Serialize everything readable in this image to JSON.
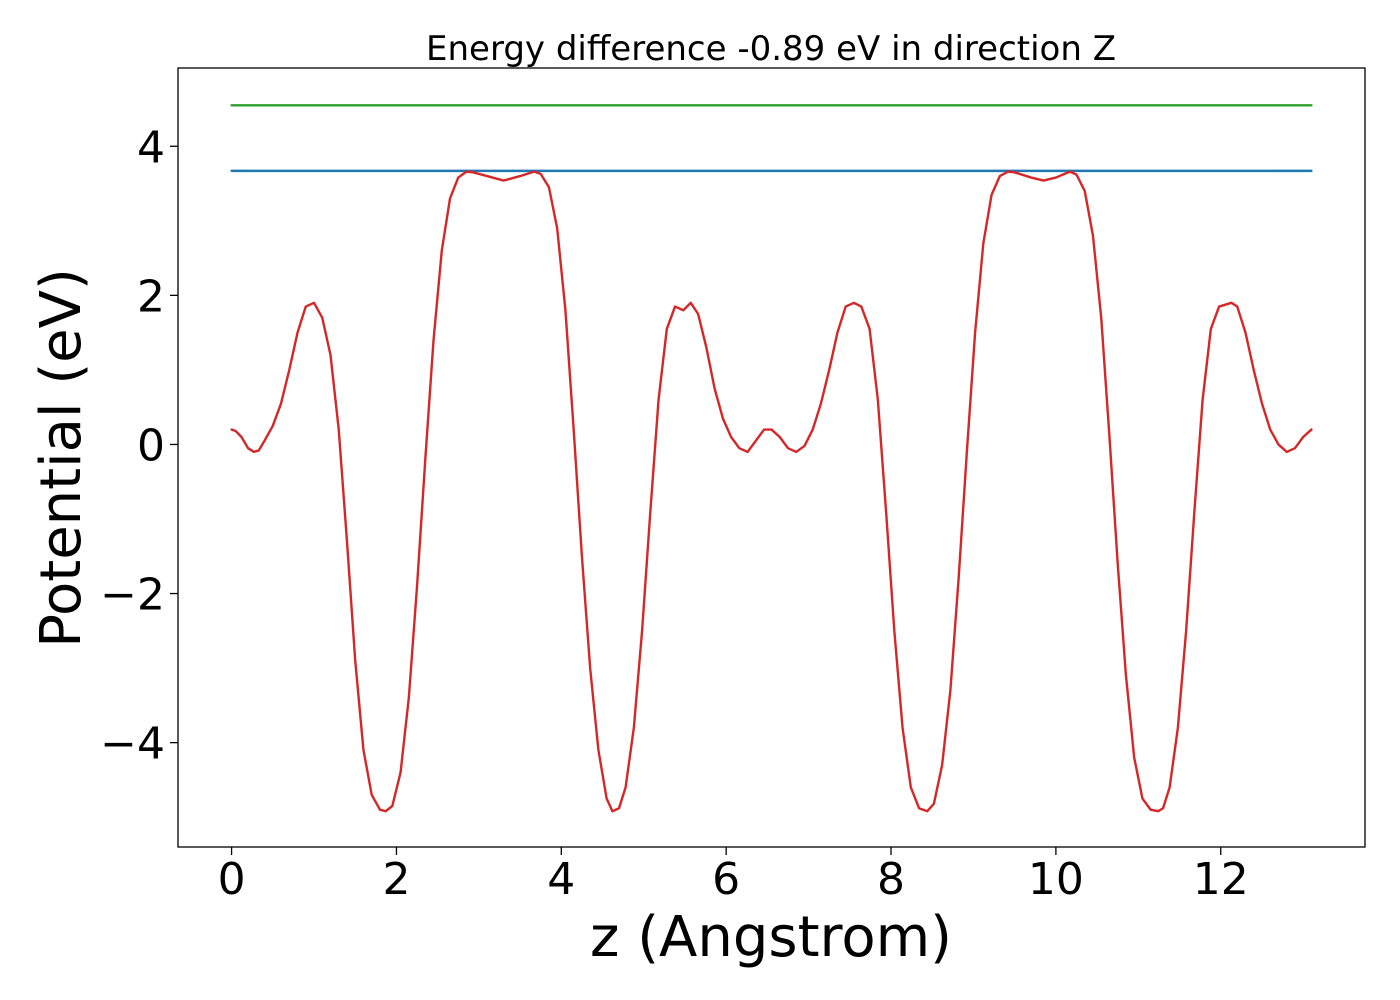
{
  "chart_data": {
    "type": "line",
    "title": "Energy difference -0.89 eV in direction Z",
    "xlabel": "z (Angstrom)",
    "ylabel": "Potential (eV)",
    "xlim": [
      -0.65,
      13.75
    ],
    "ylim": [
      -5.4,
      5.05
    ],
    "xticks": [
      0,
      2,
      4,
      6,
      8,
      10,
      12
    ],
    "yticks": [
      -4,
      -2,
      0,
      2,
      4
    ],
    "xtick_labels": [
      "0",
      "2",
      "4",
      "6",
      "8",
      "10",
      "12"
    ],
    "ytick_labels": [
      "−4",
      "−2",
      "0",
      "2",
      "4"
    ],
    "grid": false,
    "legend": "none",
    "series": [
      {
        "color": "#2ca02c",
        "x": [
          0,
          13.1
        ],
        "y": [
          4.55,
          4.55
        ]
      },
      {
        "color": "#1f77b4",
        "x": [
          0,
          13.1
        ],
        "y": [
          3.67,
          3.67
        ]
      },
      {
        "color": "#d62728",
        "x": [
          0.0,
          0.05,
          0.12,
          0.2,
          0.27,
          0.33,
          0.4,
          0.5,
          0.6,
          0.7,
          0.8,
          0.9,
          1.0,
          1.1,
          1.2,
          1.3,
          1.4,
          1.5,
          1.6,
          1.7,
          1.8,
          1.87,
          1.95,
          2.05,
          2.15,
          2.25,
          2.35,
          2.45,
          2.55,
          2.65,
          2.75,
          2.85,
          2.93,
          3.1,
          3.3,
          3.5,
          3.67,
          3.75,
          3.85,
          3.95,
          4.05,
          4.15,
          4.25,
          4.35,
          4.45,
          4.55,
          4.62,
          4.7,
          4.78,
          4.88,
          4.98,
          5.08,
          5.18,
          5.28,
          5.38,
          5.48,
          5.57,
          5.66,
          5.76,
          5.86,
          5.96,
          6.06,
          6.16,
          6.26,
          6.36,
          6.46,
          6.55,
          6.65,
          6.75,
          6.85,
          6.95,
          7.05,
          7.15,
          7.25,
          7.35,
          7.45,
          7.55,
          7.64,
          7.74,
          7.84,
          7.94,
          8.04,
          8.14,
          8.24,
          8.34,
          8.44,
          8.52,
          8.62,
          8.72,
          8.82,
          8.92,
          9.02,
          9.12,
          9.22,
          9.32,
          9.42,
          9.5,
          9.7,
          9.85,
          10.0,
          10.17,
          10.25,
          10.35,
          10.45,
          10.55,
          10.65,
          10.75,
          10.85,
          10.95,
          11.05,
          11.15,
          11.24,
          11.3,
          11.38,
          11.48,
          11.58,
          11.68,
          11.78,
          11.88,
          11.98,
          12.13,
          12.2,
          12.3,
          12.4,
          12.5,
          12.6,
          12.7,
          12.8,
          12.9,
          13.0,
          13.1
        ],
        "y": [
          0.2,
          0.18,
          0.1,
          -0.05,
          -0.1,
          -0.08,
          0.05,
          0.25,
          0.55,
          1.0,
          1.5,
          1.85,
          1.9,
          1.7,
          1.2,
          0.2,
          -1.3,
          -2.9,
          -4.1,
          -4.7,
          -4.9,
          -4.92,
          -4.85,
          -4.4,
          -3.4,
          -1.9,
          -0.2,
          1.4,
          2.6,
          3.3,
          3.58,
          3.66,
          3.65,
          3.6,
          3.54,
          3.6,
          3.66,
          3.63,
          3.45,
          2.9,
          1.8,
          0.2,
          -1.5,
          -3.0,
          -4.1,
          -4.75,
          -4.92,
          -4.88,
          -4.6,
          -3.8,
          -2.5,
          -0.9,
          0.6,
          1.55,
          1.85,
          1.8,
          1.9,
          1.75,
          1.3,
          0.75,
          0.35,
          0.1,
          -0.05,
          -0.1,
          0.05,
          0.2,
          0.2,
          0.1,
          -0.05,
          -0.1,
          -0.02,
          0.2,
          0.55,
          1.0,
          1.5,
          1.85,
          1.9,
          1.85,
          1.55,
          0.6,
          -0.9,
          -2.5,
          -3.8,
          -4.6,
          -4.88,
          -4.92,
          -4.82,
          -4.3,
          -3.3,
          -1.8,
          -0.1,
          1.5,
          2.7,
          3.35,
          3.6,
          3.66,
          3.65,
          3.58,
          3.54,
          3.58,
          3.66,
          3.62,
          3.4,
          2.8,
          1.7,
          0.1,
          -1.6,
          -3.1,
          -4.2,
          -4.75,
          -4.9,
          -4.92,
          -4.88,
          -4.6,
          -3.8,
          -2.5,
          -0.9,
          0.6,
          1.55,
          1.85,
          1.9,
          1.85,
          1.5,
          1.0,
          0.55,
          0.2,
          0.0,
          -0.1,
          -0.05,
          0.1,
          0.2
        ]
      }
    ]
  }
}
